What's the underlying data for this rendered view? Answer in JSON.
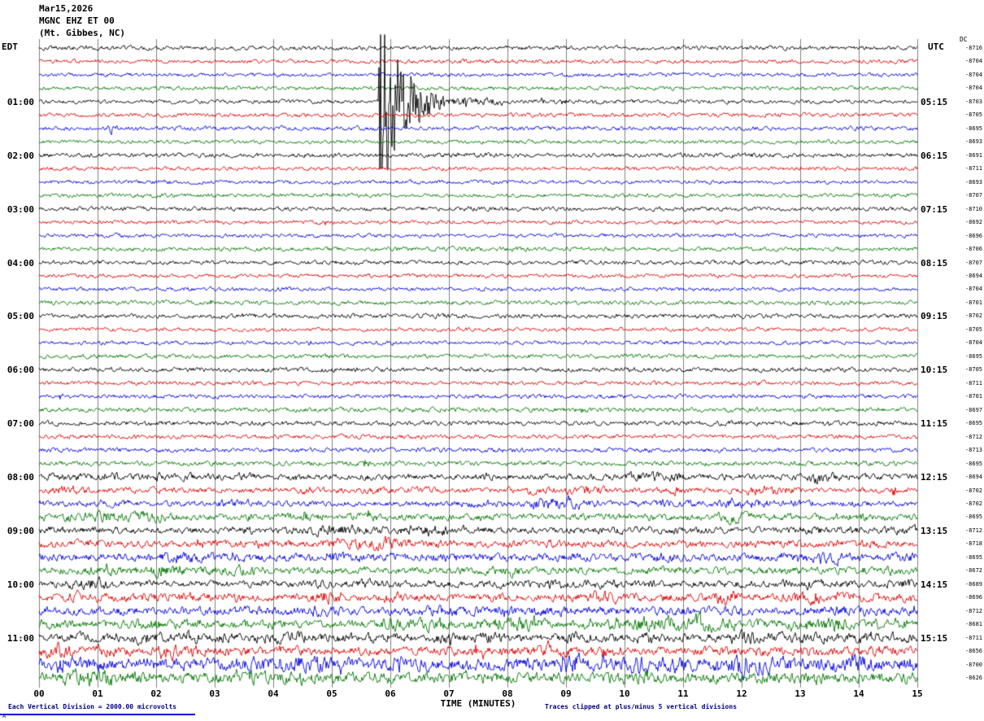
{
  "title": {
    "date": "Mar15,2026",
    "station": "MGNC EHZ ET 00",
    "location": "(Mt. Gibbes, NC)"
  },
  "axes": {
    "left_tz": "EDT",
    "right_tz": "UTC",
    "dc_header": "DC",
    "x_title": "TIME (MINUTES)",
    "x_ticks": [
      "00",
      "01",
      "02",
      "03",
      "04",
      "05",
      "06",
      "07",
      "08",
      "09",
      "10",
      "11",
      "12",
      "13",
      "14",
      "15"
    ]
  },
  "footer": {
    "scale_note": "Each Vertical Division = 2000.00 microvolts",
    "clip_note": "Traces clipped at plus/minus 5 vertical divisions",
    "corner_mark": "A"
  },
  "colors": {
    "black": "#000000",
    "red": "#dd0000",
    "blue": "#0000dd",
    "green": "#007700",
    "grid": "#808080",
    "note": "#000080"
  },
  "chart_data": {
    "type": "line",
    "description": "48 fifteen-minute seismogram traces (helicorder) for station MGNC EHZ ET 00, colors cycling black/red/blue/green, one row per 15 minutes",
    "x_range_minutes": [
      0,
      15
    ],
    "minutes_per_row": 15,
    "clip_divisions": 5,
    "microvolts_per_division": 2000.0,
    "event": {
      "description": "Large clipped earthquake arrival with decaying coda on the 01:00 EDT (05:15 UTC) black trace",
      "row": 4,
      "minute": 5.8
    },
    "hour_labels": [
      {
        "row": 4,
        "edt": "01:00",
        "utc": "05:15"
      },
      {
        "row": 8,
        "edt": "02:00",
        "utc": "06:15"
      },
      {
        "row": 12,
        "edt": "03:00",
        "utc": "07:15"
      },
      {
        "row": 16,
        "edt": "04:00",
        "utc": "08:15"
      },
      {
        "row": 20,
        "edt": "05:00",
        "utc": "09:15"
      },
      {
        "row": 24,
        "edt": "06:00",
        "utc": "10:15"
      },
      {
        "row": 28,
        "edt": "07:00",
        "utc": "11:15"
      },
      {
        "row": 32,
        "edt": "08:00",
        "utc": "12:15"
      },
      {
        "row": 36,
        "edt": "09:00",
        "utc": "13:15"
      },
      {
        "row": 40,
        "edt": "10:00",
        "utc": "14:15"
      },
      {
        "row": 44,
        "edt": "11:00",
        "utc": "15:15"
      }
    ],
    "dc_offsets": [
      -8716,
      -8704,
      -8704,
      -8704,
      -8703,
      -8705,
      -8695,
      -8693,
      -8691,
      -8711,
      -8693,
      -8707,
      -8710,
      -8692,
      -8696,
      -8706,
      -8707,
      -8694,
      -8704,
      -8701,
      -8702,
      -8705,
      -8704,
      -8695,
      -8705,
      -8711,
      -8701,
      -8697,
      -8695,
      -8712,
      -8713,
      -8695,
      -8694,
      -8702,
      -8702,
      -8695,
      -8712,
      -8718,
      -8695,
      -8672,
      -8689,
      -8696,
      -8712,
      -8681,
      -8711,
      -8656,
      -8700,
      -8626
    ],
    "rows": [
      {
        "color": "black",
        "amp": 1.3,
        "bursty": 0,
        "events": []
      },
      {
        "color": "red",
        "amp": 1.2,
        "bursty": 0,
        "events": [
          [
            1.85,
            4,
            0.05
          ]
        ]
      },
      {
        "color": "blue",
        "amp": 1.2,
        "bursty": 0,
        "events": []
      },
      {
        "color": "green",
        "amp": 1.2,
        "bursty": 0,
        "events": []
      },
      {
        "color": "black",
        "amp": 1.2,
        "bursty": 0,
        "events": [
          [
            5.8,
            150,
            0.35
          ],
          [
            5.85,
            12,
            1.5
          ]
        ]
      },
      {
        "color": "red",
        "amp": 1.3,
        "bursty": 0,
        "events": []
      },
      {
        "color": "blue",
        "amp": 1.3,
        "bursty": 0,
        "events": [
          [
            1.18,
            10,
            0.12
          ]
        ]
      },
      {
        "color": "green",
        "amp": 1.2,
        "bursty": 0,
        "events": []
      },
      {
        "color": "black",
        "amp": 1.4,
        "bursty": 0,
        "events": []
      },
      {
        "color": "red",
        "amp": 1.1,
        "bursty": 0,
        "events": []
      },
      {
        "color": "blue",
        "amp": 1.2,
        "bursty": 0,
        "events": []
      },
      {
        "color": "green",
        "amp": 1.2,
        "bursty": 0,
        "events": []
      },
      {
        "color": "black",
        "amp": 1.3,
        "bursty": 0,
        "events": []
      },
      {
        "color": "red",
        "amp": 1.2,
        "bursty": 0,
        "events": [
          [
            4.85,
            4,
            0.06
          ]
        ]
      },
      {
        "color": "blue",
        "amp": 1.2,
        "bursty": 0,
        "events": []
      },
      {
        "color": "green",
        "amp": 1.3,
        "bursty": 0,
        "events": []
      },
      {
        "color": "black",
        "amp": 1.3,
        "bursty": 0,
        "events": []
      },
      {
        "color": "red",
        "amp": 1.2,
        "bursty": 0,
        "events": []
      },
      {
        "color": "blue",
        "amp": 1.2,
        "bursty": 0,
        "events": []
      },
      {
        "color": "green",
        "amp": 1.3,
        "bursty": 0,
        "events": [
          [
            2.9,
            6,
            0.06
          ]
        ]
      },
      {
        "color": "black",
        "amp": 1.4,
        "bursty": 0,
        "events": [
          [
            2.88,
            5,
            0.05
          ]
        ]
      },
      {
        "color": "red",
        "amp": 1.2,
        "bursty": 0,
        "events": []
      },
      {
        "color": "blue",
        "amp": 1.2,
        "bursty": 0,
        "events": [
          [
            4.6,
            3,
            0.05
          ]
        ]
      },
      {
        "color": "green",
        "amp": 1.3,
        "bursty": 0,
        "events": []
      },
      {
        "color": "black",
        "amp": 1.4,
        "bursty": 0,
        "events": []
      },
      {
        "color": "red",
        "amp": 1.3,
        "bursty": 0,
        "events": []
      },
      {
        "color": "blue",
        "amp": 1.3,
        "bursty": 0,
        "events": [
          [
            0.35,
            4,
            0.05
          ]
        ]
      },
      {
        "color": "green",
        "amp": 1.4,
        "bursty": 0,
        "events": [
          [
            9.25,
            5,
            0.07
          ]
        ]
      },
      {
        "color": "black",
        "amp": 1.5,
        "bursty": 0,
        "events": []
      },
      {
        "color": "red",
        "amp": 1.3,
        "bursty": 0,
        "events": []
      },
      {
        "color": "blue",
        "amp": 1.4,
        "bursty": 0,
        "events": [
          [
            2.9,
            4,
            0.05
          ]
        ]
      },
      {
        "color": "green",
        "amp": 1.5,
        "bursty": 0,
        "events": [
          [
            5.55,
            7,
            0.08
          ]
        ]
      },
      {
        "color": "black",
        "amp": 1.8,
        "bursty": 1,
        "events": [
          [
            1.05,
            5,
            0.06
          ]
        ]
      },
      {
        "color": "red",
        "amp": 1.6,
        "bursty": 1,
        "events": [
          [
            0.6,
            4,
            0.05
          ],
          [
            14.55,
            6,
            0.1
          ]
        ]
      },
      {
        "color": "blue",
        "amp": 1.8,
        "bursty": 1,
        "events": []
      },
      {
        "color": "green",
        "amp": 2.0,
        "bursty": 1,
        "events": [
          [
            4.5,
            5,
            0.3
          ],
          [
            5.6,
            5,
            0.2
          ]
        ]
      },
      {
        "color": "black",
        "amp": 2.0,
        "bursty": 1,
        "events": []
      },
      {
        "color": "red",
        "amp": 2.2,
        "bursty": 1,
        "events": [
          [
            2.7,
            5,
            0.1
          ],
          [
            9.6,
            5,
            0.1
          ]
        ]
      },
      {
        "color": "blue",
        "amp": 2.4,
        "bursty": 1,
        "events": [
          [
            3.3,
            6,
            0.3
          ],
          [
            14.9,
            8,
            0.1
          ]
        ]
      },
      {
        "color": "green",
        "amp": 2.2,
        "bursty": 1,
        "events": [
          [
            1.15,
            8,
            0.1
          ],
          [
            1.85,
            6,
            0.1
          ]
        ]
      },
      {
        "color": "black",
        "amp": 2.2,
        "bursty": 1,
        "events": []
      },
      {
        "color": "red",
        "amp": 2.4,
        "bursty": 1,
        "events": [
          [
            4.8,
            6,
            0.3
          ],
          [
            5.15,
            6,
            0.2
          ]
        ]
      },
      {
        "color": "blue",
        "amp": 2.6,
        "bursty": 1,
        "events": [
          [
            14.9,
            9,
            0.1
          ]
        ]
      },
      {
        "color": "green",
        "amp": 2.5,
        "bursty": 1,
        "events": [
          [
            14.6,
            8,
            0.15
          ]
        ]
      },
      {
        "color": "black",
        "amp": 2.6,
        "bursty": 1,
        "events": [
          [
            10.2,
            6,
            0.3
          ]
        ]
      },
      {
        "color": "red",
        "amp": 2.8,
        "bursty": 1,
        "events": [
          [
            7.3,
            6,
            0.4
          ],
          [
            8.6,
            6,
            0.3
          ],
          [
            9.6,
            6,
            0.3
          ]
        ]
      },
      {
        "color": "blue",
        "amp": 4.0,
        "bursty": 1,
        "events": [
          [
            0.3,
            8,
            0.2
          ],
          [
            8.9,
            10,
            0.3
          ]
        ]
      },
      {
        "color": "green",
        "amp": 3.4,
        "bursty": 1,
        "events": [
          [
            4.3,
            8,
            0.2
          ],
          [
            6.8,
            6,
            0.3
          ]
        ]
      }
    ]
  }
}
